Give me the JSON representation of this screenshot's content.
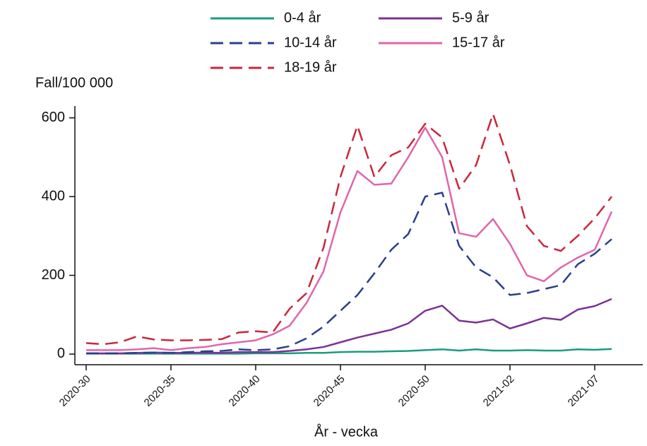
{
  "chart_data": {
    "type": "line",
    "y_label": "Fall/100 000",
    "x_label": "År - vecka",
    "categories": [
      "2020-30",
      null,
      null,
      null,
      null,
      "2020-35",
      null,
      null,
      null,
      null,
      "2020-40",
      null,
      null,
      null,
      null,
      "2020-45",
      null,
      null,
      null,
      null,
      "2020-50",
      null,
      null,
      null,
      null,
      "2021-02",
      null,
      null,
      null,
      null,
      "2021-07",
      null
    ],
    "ylim": [
      -27,
      630
    ],
    "yticks": [
      0,
      200,
      400,
      600
    ],
    "legend": "top",
    "series": [
      {
        "name": "0-4 år",
        "color": "#1a9c80",
        "dashed": false,
        "values": [
          1,
          1,
          1,
          1,
          1,
          1,
          1,
          1,
          1,
          1,
          2,
          2,
          2,
          3,
          3,
          5,
          6,
          6,
          7,
          8,
          10,
          12,
          9,
          12,
          9,
          9,
          10,
          9,
          9,
          12,
          11,
          13
        ]
      },
      {
        "name": "5-9 år",
        "color": "#7b3294",
        "dashed": false,
        "values": [
          2,
          2,
          2,
          3,
          4,
          3,
          3,
          4,
          3,
          5,
          5,
          5,
          8,
          12,
          18,
          30,
          42,
          52,
          62,
          78,
          110,
          123,
          85,
          80,
          88,
          65,
          78,
          92,
          87,
          113,
          122,
          140
        ]
      },
      {
        "name": "10-14 år",
        "color": "#2b3f8c",
        "dashed": true,
        "values": [
          2,
          2,
          2,
          3,
          4,
          3,
          5,
          7,
          8,
          12,
          10,
          12,
          20,
          40,
          70,
          110,
          150,
          205,
          265,
          305,
          400,
          410,
          275,
          220,
          195,
          150,
          155,
          165,
          175,
          228,
          255,
          292
        ]
      },
      {
        "name": "15-17 år",
        "color": "#e066aa",
        "dashed": false,
        "values": [
          10,
          10,
          10,
          12,
          15,
          10,
          15,
          18,
          25,
          30,
          35,
          50,
          72,
          130,
          210,
          360,
          465,
          430,
          433,
          500,
          575,
          500,
          307,
          298,
          343,
          280,
          200,
          185,
          220,
          245,
          265,
          362
        ]
      },
      {
        "name": "18-19 år",
        "color": "#c8283c",
        "dashed": true,
        "values": [
          28,
          25,
          30,
          45,
          37,
          35,
          35,
          36,
          38,
          55,
          58,
          55,
          115,
          155,
          270,
          450,
          580,
          450,
          505,
          525,
          585,
          550,
          420,
          480,
          610,
          480,
          325,
          275,
          262,
          300,
          345,
          400
        ]
      }
    ]
  }
}
